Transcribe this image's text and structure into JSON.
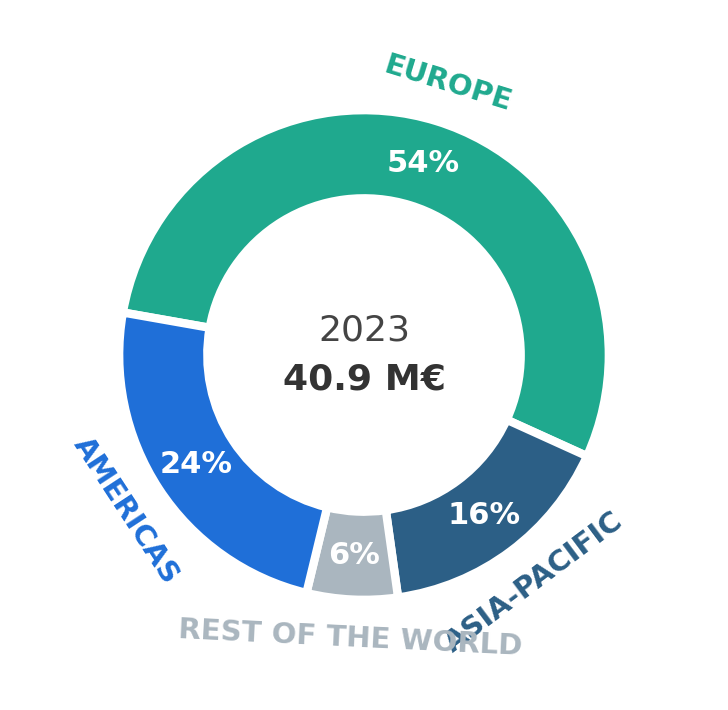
{
  "chart_data": {
    "type": "pie",
    "categories": [
      "EUROPE",
      "ASIA-PACIFIC",
      "REST OF THE WORLD",
      "AMERICAS"
    ],
    "values": [
      54,
      16,
      6,
      24
    ],
    "value_labels": [
      "54%",
      "16%",
      "6%",
      "24%"
    ],
    "colors": [
      "#1fa98e",
      "#2c5f86",
      "#aab6bf",
      "#1f6fd8"
    ],
    "data_labels": true,
    "annotations": [
      "2023",
      "40.9 M€"
    ]
  }
}
